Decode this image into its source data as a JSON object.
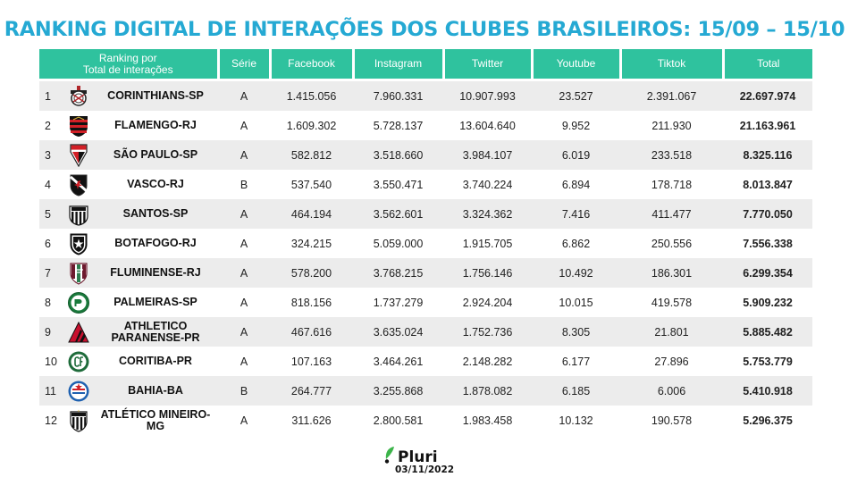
{
  "title": "RANKING DIGITAL DE INTERAÇÕES DOS CLUBES BRASILEIROS: 15/09 – 15/10",
  "header": {
    "ranking_line1": "Ranking por",
    "ranking_line2": "Total de interações",
    "serie": "Série",
    "facebook": "Facebook",
    "instagram": "Instagram",
    "twitter": "Twitter",
    "youtube": "Youtube",
    "tiktok": "Tiktok",
    "total": "Total"
  },
  "colors": {
    "title": "#25a9d3",
    "header_bg": "#2fc29e",
    "stripe": "#ececec"
  },
  "rows": [
    {
      "pos": "1",
      "club": "CORINTHIANS-SP",
      "logo": "corinthians-crest-icon",
      "serie": "A",
      "facebook": "1.415.056",
      "instagram": "7.960.331",
      "twitter": "10.907.993",
      "youtube": "23.527",
      "tiktok": "2.391.067",
      "total": "22.697.974"
    },
    {
      "pos": "2",
      "club": "FLAMENGO-RJ",
      "logo": "flamengo-crest-icon",
      "serie": "A",
      "facebook": "1.609.302",
      "instagram": "5.728.137",
      "twitter": "13.604.640",
      "youtube": "9.952",
      "tiktok": "211.930",
      "total": "21.163.961"
    },
    {
      "pos": "3",
      "club": "SÃO PAULO-SP",
      "logo": "sao-paulo-crest-icon",
      "serie": "A",
      "facebook": "582.812",
      "instagram": "3.518.660",
      "twitter": "3.984.107",
      "youtube": "6.019",
      "tiktok": "233.518",
      "total": "8.325.116"
    },
    {
      "pos": "4",
      "club": "VASCO-RJ",
      "logo": "vasco-crest-icon",
      "serie": "B",
      "facebook": "537.540",
      "instagram": "3.550.471",
      "twitter": "3.740.224",
      "youtube": "6.894",
      "tiktok": "178.718",
      "total": "8.013.847"
    },
    {
      "pos": "5",
      "club": "SANTOS-SP",
      "logo": "santos-crest-icon",
      "serie": "A",
      "facebook": "464.194",
      "instagram": "3.562.601",
      "twitter": "3.324.362",
      "youtube": "7.416",
      "tiktok": "411.477",
      "total": "7.770.050"
    },
    {
      "pos": "6",
      "club": "BOTAFOGO-RJ",
      "logo": "botafogo-crest-icon",
      "serie": "A",
      "facebook": "324.215",
      "instagram": "5.059.000",
      "twitter": "1.915.705",
      "youtube": "6.862",
      "tiktok": "250.556",
      "total": "7.556.338"
    },
    {
      "pos": "7",
      "club": "FLUMINENSE-RJ",
      "logo": "fluminense-crest-icon",
      "serie": "A",
      "facebook": "578.200",
      "instagram": "3.768.215",
      "twitter": "1.756.146",
      "youtube": "10.492",
      "tiktok": "186.301",
      "total": "6.299.354"
    },
    {
      "pos": "8",
      "club": "PALMEIRAS-SP",
      "logo": "palmeiras-crest-icon",
      "serie": "A",
      "facebook": "818.156",
      "instagram": "1.737.279",
      "twitter": "2.924.204",
      "youtube": "10.015",
      "tiktok": "419.578",
      "total": "5.909.232"
    },
    {
      "pos": "9",
      "club": "ATHLETICO PARANENSE-PR",
      "logo": "athletico-crest-icon",
      "serie": "A",
      "facebook": "467.616",
      "instagram": "3.635.024",
      "twitter": "1.752.736",
      "youtube": "8.305",
      "tiktok": "21.801",
      "total": "5.885.482"
    },
    {
      "pos": "10",
      "club": "CORITIBA-PR",
      "logo": "coritiba-crest-icon",
      "serie": "A",
      "facebook": "107.163",
      "instagram": "3.464.261",
      "twitter": "2.148.282",
      "youtube": "6.177",
      "tiktok": "27.896",
      "total": "5.753.779"
    },
    {
      "pos": "11",
      "club": "BAHIA-BA",
      "logo": "bahia-crest-icon",
      "serie": "B",
      "facebook": "264.777",
      "instagram": "3.255.868",
      "twitter": "1.878.082",
      "youtube": "6.185",
      "tiktok": "6.006",
      "total": "5.410.918"
    },
    {
      "pos": "12",
      "club": "ATLÉTICO MINEIRO-MG",
      "logo": "atletico-mg-crest-icon",
      "serie": "A",
      "facebook": "311.626",
      "instagram": "2.800.581",
      "twitter": "1.983.458",
      "youtube": "10.132",
      "tiktok": "190.578",
      "total": "5.296.375"
    }
  ],
  "footer": {
    "brand": "Pluri",
    "date": "03/11/2022"
  }
}
